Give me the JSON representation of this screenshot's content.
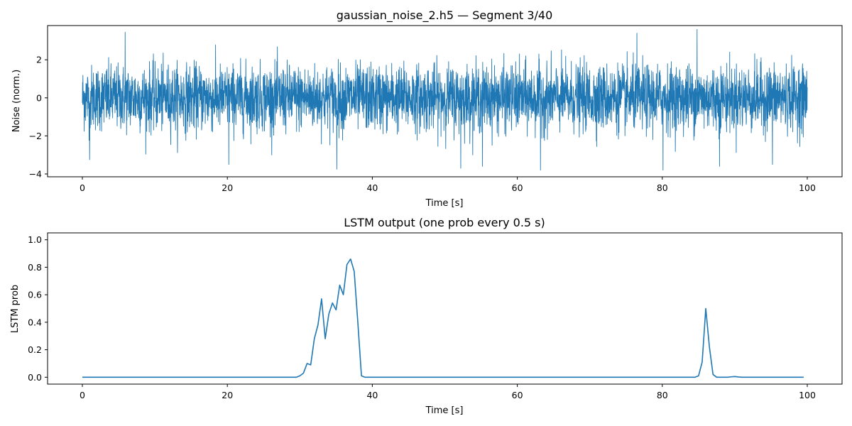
{
  "chart_data": [
    {
      "type": "line",
      "title": "gaussian_noise_2.h5 — Segment 3/40",
      "xlabel": "Time [s]",
      "ylabel": "Noise (norm.)",
      "xlim": [
        -4.8,
        104.8
      ],
      "ylim": [
        -4.15,
        3.8
      ],
      "xticks": [
        0,
        20,
        40,
        60,
        80,
        100
      ],
      "yticks": [
        -4,
        -2,
        0,
        2
      ],
      "grid": false,
      "color": "#1f77b4",
      "series": [
        {
          "noise_summary": {
            "x_range": [
              0,
              100
            ],
            "mean": 0.0,
            "std": 0.85,
            "typical_envelope": [
              -2.0,
              2.0
            ],
            "extremes": [
              {
                "x": 1.0,
                "y": -3.25
              },
              {
                "x": 5.9,
                "y": 3.45
              },
              {
                "x": 20.2,
                "y": -3.5
              },
              {
                "x": 35.1,
                "y": -3.75
              },
              {
                "x": 52.2,
                "y": -3.7
              },
              {
                "x": 55.2,
                "y": -3.6
              },
              {
                "x": 63.2,
                "y": -3.8
              },
              {
                "x": 76.5,
                "y": 3.4
              },
              {
                "x": 80.1,
                "y": -3.8
              },
              {
                "x": 84.8,
                "y": 3.6
              },
              {
                "x": 87.9,
                "y": -3.6
              },
              {
                "x": 95.2,
                "y": -3.5
              }
            ]
          }
        }
      ]
    },
    {
      "type": "line",
      "title": "LSTM output (one prob every 0.5 s)",
      "xlabel": "Time [s]",
      "ylabel": "LSTM prob",
      "xlim": [
        -4.8,
        104.8
      ],
      "ylim": [
        -0.05,
        1.05
      ],
      "xticks": [
        0,
        20,
        40,
        60,
        80,
        100
      ],
      "yticks": [
        0.0,
        0.2,
        0.4,
        0.6,
        0.8,
        1.0
      ],
      "grid": false,
      "color": "#1f77b4",
      "series": [
        {
          "x": [
            0,
            29.5,
            30.0,
            30.5,
            31.0,
            31.5,
            32.0,
            32.5,
            33.0,
            33.5,
            34.0,
            34.5,
            35.0,
            35.5,
            36.0,
            36.5,
            37.0,
            37.5,
            38.0,
            38.5,
            39.0,
            84.0,
            84.5,
            85.0,
            85.5,
            86.0,
            86.5,
            87.0,
            87.5,
            88.0,
            89.0,
            89.5,
            90.0,
            90.5,
            91.0,
            99.5
          ],
          "y": [
            0.0,
            0.0,
            0.01,
            0.03,
            0.1,
            0.09,
            0.28,
            0.38,
            0.57,
            0.28,
            0.46,
            0.54,
            0.49,
            0.67,
            0.6,
            0.82,
            0.86,
            0.77,
            0.4,
            0.01,
            0.0,
            0.0,
            0.0,
            0.01,
            0.11,
            0.5,
            0.22,
            0.02,
            0.0,
            0.0,
            0.0,
            0.003,
            0.005,
            0.002,
            0.0,
            0.0
          ]
        }
      ]
    }
  ]
}
